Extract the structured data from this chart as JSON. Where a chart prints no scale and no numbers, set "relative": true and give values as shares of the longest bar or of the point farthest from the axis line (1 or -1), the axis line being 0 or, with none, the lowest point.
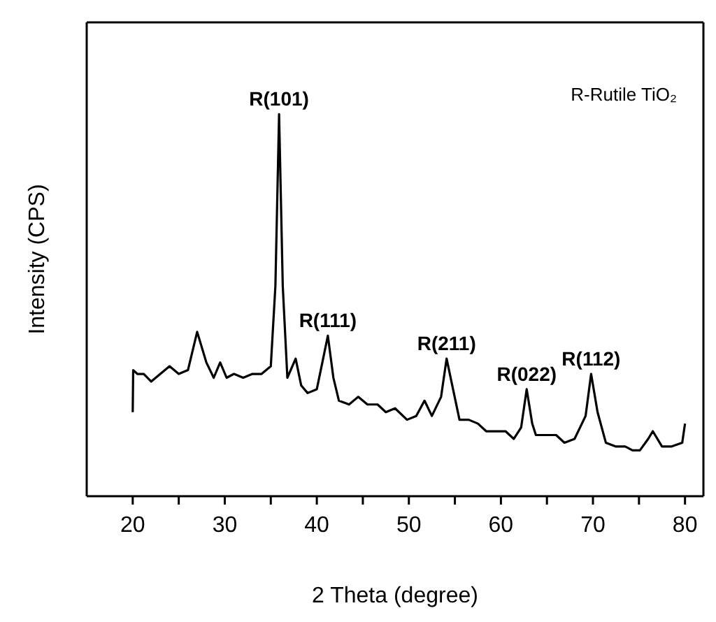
{
  "chart_data": {
    "type": "line",
    "relative": true,
    "xlabel": "2 Theta (degree)",
    "ylabel": "Intensity (CPS)",
    "xlim": [
      15,
      82
    ],
    "xticks": [
      20,
      {
        "value": 25,
        "label": null
      },
      30,
      {
        "value": 35,
        "label": null
      },
      40,
      {
        "value": 45,
        "label": null
      },
      50,
      {
        "value": 55,
        "label": null
      },
      60,
      {
        "value": 65,
        "label": null
      },
      70,
      {
        "value": 75,
        "label": null
      },
      80
    ],
    "legend": false,
    "marker": "none",
    "line_style": "solid",
    "annotations": [
      {
        "text": "R(101)",
        "x": 35.9,
        "y": 1
      },
      {
        "text": "R(111)",
        "x": 41.2,
        "y": 0.42
      },
      {
        "text": "R(211)",
        "x": 54.1,
        "y": 0.36
      },
      {
        "text": "R(022)",
        "x": 62.8,
        "y": 0.28
      },
      {
        "text": "R(112)",
        "x": 69.8,
        "y": 0.32
      },
      "R-Rutile TiO₂"
    ],
    "series": [
      {
        "color": "#000000",
        "x": [
          20.0,
          20.05,
          20.5,
          21.2,
          22,
          23,
          24,
          25,
          26,
          27,
          28,
          28.8,
          29.5,
          30.2,
          31,
          32,
          33,
          34,
          35,
          35.5,
          35.9,
          36.3,
          36.8,
          37.7,
          38.3,
          39,
          40,
          40.6,
          41.2,
          41.8,
          42.4,
          43.5,
          44.5,
          45.5,
          46.6,
          47.5,
          48.5,
          49.8,
          50.8,
          51.7,
          52.5,
          53.5,
          54.1,
          54.8,
          55.5,
          56.5,
          57.5,
          58.4,
          59.5,
          60.5,
          61.4,
          62.2,
          62.8,
          63.4,
          63.8,
          65,
          66,
          66.9,
          68,
          69.2,
          69.8,
          70.5,
          71.4,
          72.5,
          73.5,
          74.3,
          75.1,
          76,
          76.5,
          77.5,
          78.5,
          79.7,
          80
        ],
        "values": [
          0.22,
          0.33,
          0.32,
          0.32,
          0.3,
          0.32,
          0.34,
          0.32,
          0.33,
          0.43,
          0.35,
          0.31,
          0.35,
          0.31,
          0.32,
          0.31,
          0.32,
          0.32,
          0.34,
          0.55,
          1,
          0.55,
          0.31,
          0.36,
          0.29,
          0.27,
          0.28,
          0.35,
          0.42,
          0.31,
          0.25,
          0.24,
          0.26,
          0.24,
          0.24,
          0.22,
          0.23,
          0.2,
          0.21,
          0.25,
          0.21,
          0.26,
          0.36,
          0.28,
          0.2,
          0.2,
          0.19,
          0.17,
          0.17,
          0.17,
          0.15,
          0.18,
          0.28,
          0.19,
          0.16,
          0.16,
          0.16,
          0.14,
          0.15,
          0.21,
          0.32,
          0.22,
          0.14,
          0.13,
          0.13,
          0.12,
          0.12,
          0.15,
          0.17,
          0.13,
          0.13,
          0.14,
          0.19
        ]
      }
    ]
  }
}
